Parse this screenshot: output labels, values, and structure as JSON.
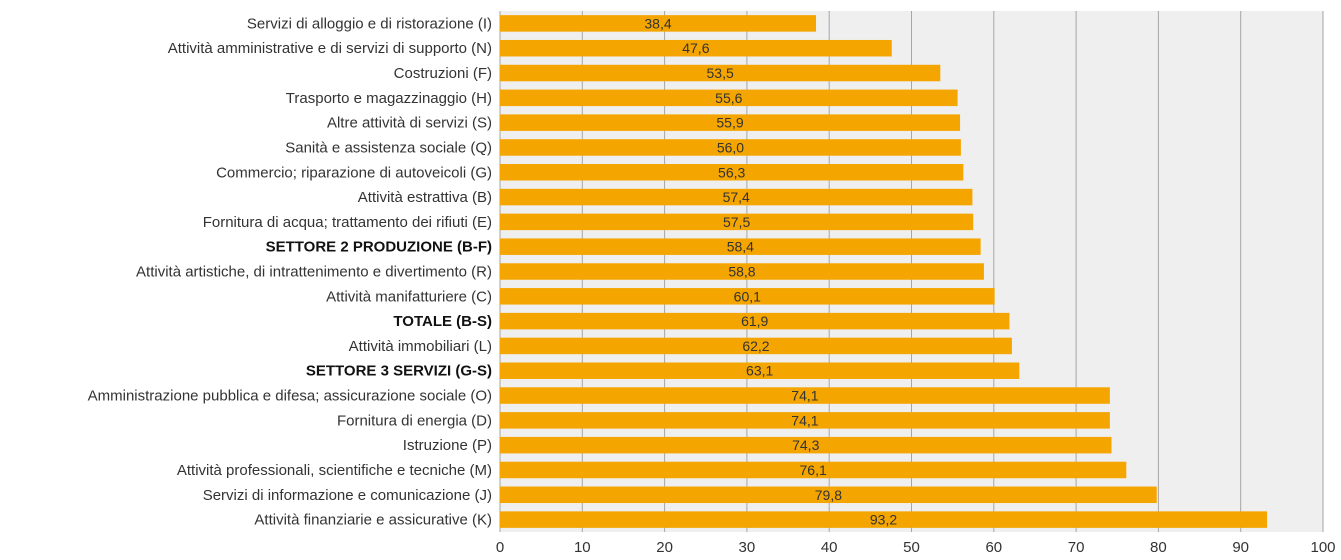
{
  "chart_data": {
    "type": "bar",
    "orientation": "horizontal",
    "categories": [
      "Servizi di alloggio e di ristorazione (I)",
      "Attività amministrative e di servizi di supporto (N)",
      "Costruzioni (F)",
      "Trasporto e magazzinaggio (H)",
      "Altre attività di servizi (S)",
      "Sanità e assistenza sociale (Q)",
      "Commercio; riparazione di autoveicoli (G)",
      "Attività estrattiva (B)",
      "Fornitura di acqua; trattamento dei rifiuti (E)",
      "SETTORE 2 PRODUZIONE (B-F)",
      "Attività artistiche, di intrattenimento e divertimento (R)",
      "Attività manifatturiere (C)",
      "TOTALE (B-S)",
      "Attività immobiliari (L)",
      "SETTORE 3 SERVIZI (G-S)",
      "Amministrazione pubblica e difesa; assicurazione sociale (O)",
      "Fornitura di energia (D)",
      "Istruzione (P)",
      "Attività professionali, scientifiche e tecniche (M)",
      "Servizi di informazione e comunicazione (J)",
      "Attività finanziarie e assicurative (K)"
    ],
    "values": [
      38.4,
      47.6,
      53.5,
      55.6,
      55.9,
      56.0,
      56.3,
      57.4,
      57.5,
      58.4,
      58.8,
      60.1,
      61.9,
      62.2,
      63.1,
      74.1,
      74.1,
      74.3,
      76.1,
      79.8,
      93.2
    ],
    "value_labels": [
      "38,4",
      "47,6",
      "53,5",
      "55,6",
      "55,9",
      "56,0",
      "56,3",
      "57,4",
      "57,5",
      "58,4",
      "58,8",
      "60,1",
      "61,9",
      "62,2",
      "63,1",
      "74,1",
      "74,1",
      "74,3",
      "76,1",
      "79,8",
      "93,2"
    ],
    "bold_categories": [
      "SETTORE 2 PRODUZIONE (B-F)",
      "TOTALE (B-S)",
      "SETTORE 3 SERVIZI (G-S)"
    ],
    "xlim": [
      0,
      100
    ],
    "xticks": [
      0,
      10,
      20,
      30,
      40,
      50,
      60,
      70,
      80,
      90,
      100
    ],
    "grid": true,
    "colors": {
      "bar": "#F5A500",
      "plot_background": "#EFEFEF",
      "grid": "#A6A6A6",
      "text": "#333333"
    }
  }
}
